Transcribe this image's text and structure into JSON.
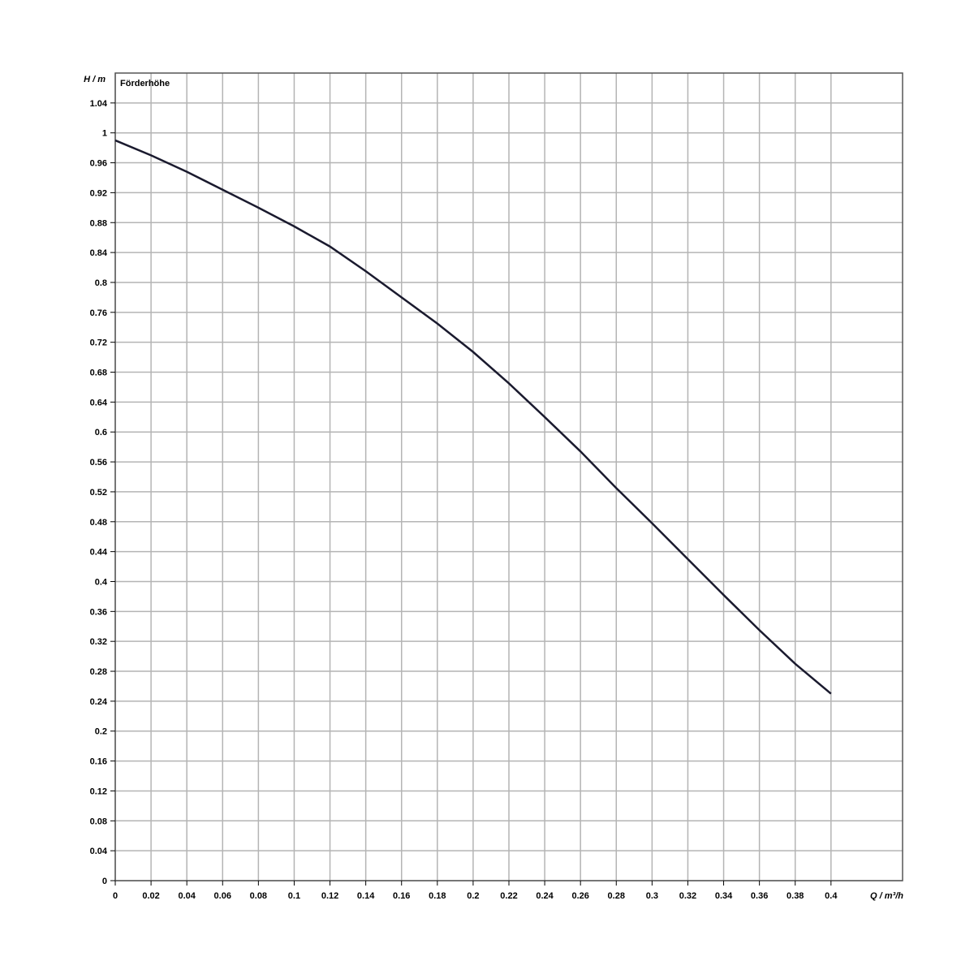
{
  "chart_data": {
    "type": "line",
    "y_label": "H / m",
    "x_label": "Q / m³/h",
    "series": [
      {
        "name": "Förderhöhe",
        "color": "#1a1a2e",
        "values": [
          0.99,
          0.97,
          0.948,
          0.924,
          0.9,
          0.875,
          0.848,
          0.815,
          0.78,
          0.745,
          0.707,
          0.665,
          0.62,
          0.574,
          0.525,
          0.478,
          0.43,
          0.382,
          0.335,
          0.29,
          0.25
        ]
      }
    ],
    "x": [
      0,
      0.02,
      0.04,
      0.06,
      0.08,
      0.1,
      0.12,
      0.14,
      0.16,
      0.18,
      0.2,
      0.22,
      0.24,
      0.26,
      0.28,
      0.3,
      0.32,
      0.34,
      0.36,
      0.38,
      0.4
    ],
    "xlim": [
      0,
      0.44
    ],
    "ylim": [
      0,
      1.08
    ],
    "xticks": [
      0,
      0.02,
      0.04,
      0.06,
      0.08,
      0.1,
      0.12,
      0.14,
      0.16,
      0.18,
      0.2,
      0.22,
      0.24,
      0.26,
      0.28,
      0.3,
      0.32,
      0.34,
      0.36,
      0.38,
      0.4
    ],
    "yticks": [
      0,
      0.04,
      0.08,
      0.12,
      0.16,
      0.2,
      0.24,
      0.28,
      0.32,
      0.36,
      0.4,
      0.44,
      0.48,
      0.52,
      0.56,
      0.6,
      0.64,
      0.68,
      0.72,
      0.76,
      0.8,
      0.84,
      0.88,
      0.92,
      0.96,
      1,
      1.04
    ],
    "grid": true
  }
}
